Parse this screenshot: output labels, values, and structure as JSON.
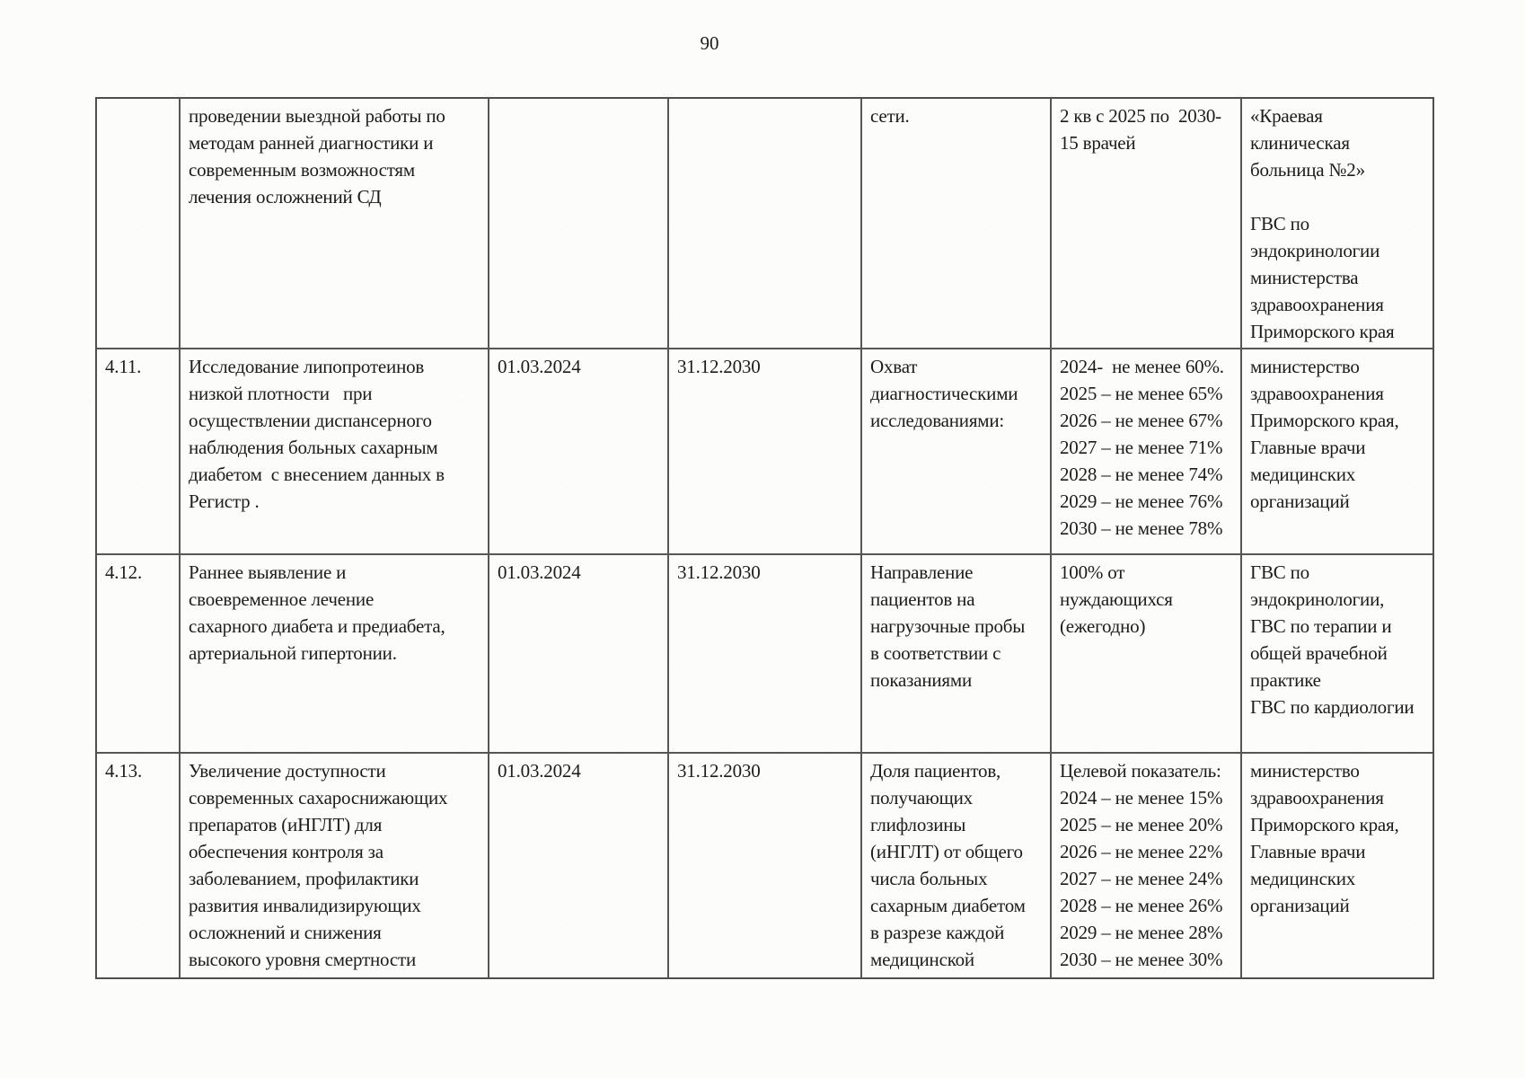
{
  "page": {
    "number": "90"
  },
  "table": {
    "rows": [
      {
        "num": "",
        "activity": "проведении выездной работы по\nметодам ранней диагностики и\nсовременным возможностям\nлечения осложнений СД",
        "start": "",
        "end": "",
        "indicator": "сети.",
        "target": "2 кв с 2025 по  2030-\n15 врачей",
        "responsible": "«Краевая\nклиническая\nбольница №2»\n\nГВС по\nэндокринологии\nминистерства\nздравоохранения\nПриморского края"
      },
      {
        "num": "4.11.",
        "activity": "Исследование липопротеинов\nнизкой плотности   при\nосуществлении диспансерного\nнаблюдения больных сахарным\nдиабетом  с внесением данных в\nРегистр .",
        "start": "01.03.2024",
        "end": "31.12.2030",
        "indicator": "Охват\nдиагностическими\nисследованиями:",
        "target": "2024-  не менее 60%.\n2025 – не менее 65%\n2026 – не менее 67%\n2027 – не менее 71%\n2028 – не менее 74%\n2029 – не менее 76%\n2030 – не менее 78%",
        "responsible": "министерство\nздравоохранения\nПриморского края,\nГлавные врачи\nмедицинских\nорганизаций"
      },
      {
        "num": "4.12.",
        "activity": "Раннее выявление и\nсвоевременное лечение\nсахарного диабета и предиабета,\nартериальной гипертонии.",
        "start": "01.03.2024",
        "end": "31.12.2030",
        "indicator": "Направление\nпациентов на\nнагрузочные пробы\nв соответствии с\nпоказаниями",
        "target": "100% от\nнуждающихся\n(ежегодно)",
        "responsible": "ГВС по\nэндокринологии,\nГВС по терапии и\nобщей врачебной\nпрактике\nГВС по кардиологии"
      },
      {
        "num": "4.13.",
        "activity": "Увеличение доступности\nсовременных сахароснижающих\nпрепаратов (иНГЛТ) для\nобеспечения контроля за\nзаболеванием, профилактики\nразвития инвалидизирующих\nосложнений и снижения\nвысокого уровня смертности",
        "start": "01.03.2024",
        "end": "31.12.2030",
        "indicator": "Доля пациентов,\nполучающих\nглифлозины\n(иНГЛТ) от общего\nчисла больных\nсахарным диабетом\nв разрезе каждой\nмедицинской",
        "target": "Целевой показатель:\n2024 – не менее 15%\n2025 – не менее 20%\n2026 – не менее 22%\n2027 – не менее 24%\n2028 – не менее 26%\n2029 – не менее 28%\n2030 – не менее 30%",
        "responsible": "министерство\nздравоохранения\nПриморского края,\nГлавные врачи\nмедицинских\nорганизаций"
      }
    ]
  }
}
